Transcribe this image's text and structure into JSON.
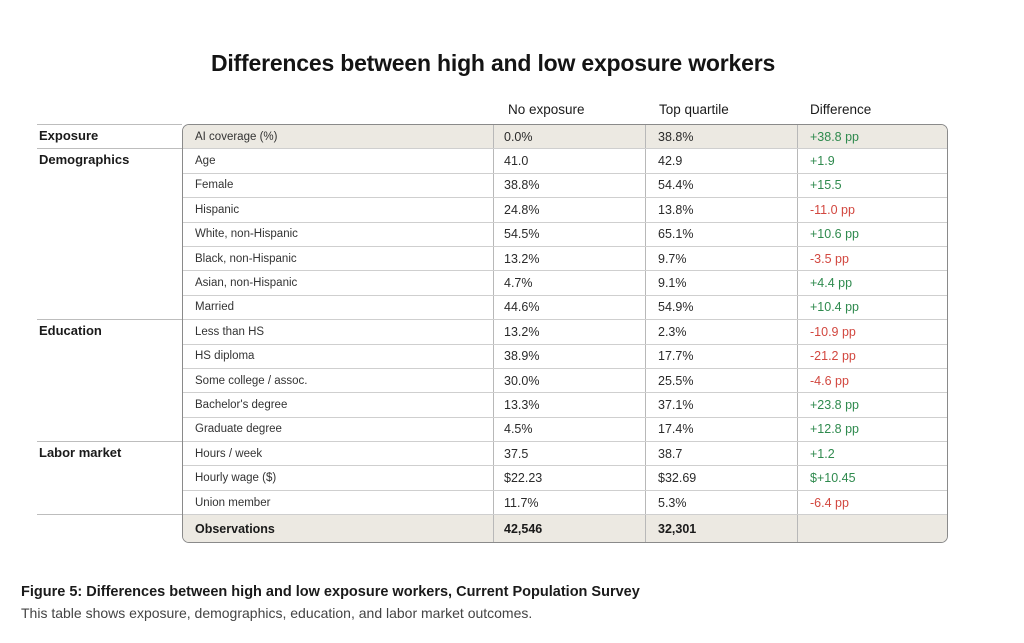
{
  "chart_data": {
    "type": "table",
    "title": "Differences between high and low exposure workers",
    "columns": [
      "No exposure",
      "Top quartile",
      "Difference"
    ],
    "categories": [
      {
        "name": "Exposure",
        "first_row": 0
      },
      {
        "name": "Demographics",
        "first_row": 1
      },
      {
        "name": "Education",
        "first_row": 8
      },
      {
        "name": "Labor market",
        "first_row": 13
      }
    ],
    "rows": [
      {
        "label": "AI coverage (%)",
        "no_exposure": "0.0%",
        "top_quartile": "38.8%",
        "difference": "+38.8 pp",
        "sign": "pos"
      },
      {
        "label": "Age",
        "no_exposure": "41.0",
        "top_quartile": "42.9",
        "difference": "+1.9",
        "sign": "pos"
      },
      {
        "label": "Female",
        "no_exposure": "38.8%",
        "top_quartile": "54.4%",
        "difference": "+15.5",
        "sign": "pos"
      },
      {
        "label": "Hispanic",
        "no_exposure": "24.8%",
        "top_quartile": "13.8%",
        "difference": "-11.0 pp",
        "sign": "neg"
      },
      {
        "label": "White, non-Hispanic",
        "no_exposure": "54.5%",
        "top_quartile": "65.1%",
        "difference": "+10.6 pp",
        "sign": "pos"
      },
      {
        "label": "Black, non-Hispanic",
        "no_exposure": "13.2%",
        "top_quartile": "9.7%",
        "difference": "-3.5 pp",
        "sign": "neg"
      },
      {
        "label": "Asian, non-Hispanic",
        "no_exposure": "4.7%",
        "top_quartile": "9.1%",
        "difference": "+4.4 pp",
        "sign": "pos"
      },
      {
        "label": "Married",
        "no_exposure": "44.6%",
        "top_quartile": "54.9%",
        "difference": "+10.4 pp",
        "sign": "pos"
      },
      {
        "label": "Less than HS",
        "no_exposure": "13.2%",
        "top_quartile": "2.3%",
        "difference": "-10.9 pp",
        "sign": "neg"
      },
      {
        "label": "HS diploma",
        "no_exposure": "38.9%",
        "top_quartile": "17.7%",
        "difference": "-21.2 pp",
        "sign": "neg"
      },
      {
        "label": "Some college / assoc.",
        "no_exposure": "30.0%",
        "top_quartile": "25.5%",
        "difference": "-4.6 pp",
        "sign": "neg"
      },
      {
        "label": "Bachelor's degree",
        "no_exposure": "13.3%",
        "top_quartile": "37.1%",
        "difference": "+23.8 pp",
        "sign": "pos"
      },
      {
        "label": "Graduate degree",
        "no_exposure": "4.5%",
        "top_quartile": "17.4%",
        "difference": "+12.8 pp",
        "sign": "pos"
      },
      {
        "label": "Hours / week",
        "no_exposure": "37.5",
        "top_quartile": "38.7",
        "difference": "+1.2",
        "sign": "pos"
      },
      {
        "label": "Hourly wage ($)",
        "no_exposure": "$22.23",
        "top_quartile": "$32.69",
        "difference": "$+10.45",
        "sign": "pos"
      },
      {
        "label": "Union member",
        "no_exposure": "11.7%",
        "top_quartile": "5.3%",
        "difference": "-6.4 pp",
        "sign": "neg"
      }
    ],
    "observations": {
      "label": "Observations",
      "no_exposure": "42,546",
      "top_quartile": "32,301",
      "difference": ""
    }
  },
  "caption": {
    "title": "Figure 5: Differences between high and low exposure workers, Current Population Survey",
    "text": "This table shows exposure, demographics, education, and labor market outcomes."
  },
  "colors": {
    "positive": "#2f8a4e",
    "negative": "#d2473f",
    "shaded_row": "#ece9e2"
  }
}
